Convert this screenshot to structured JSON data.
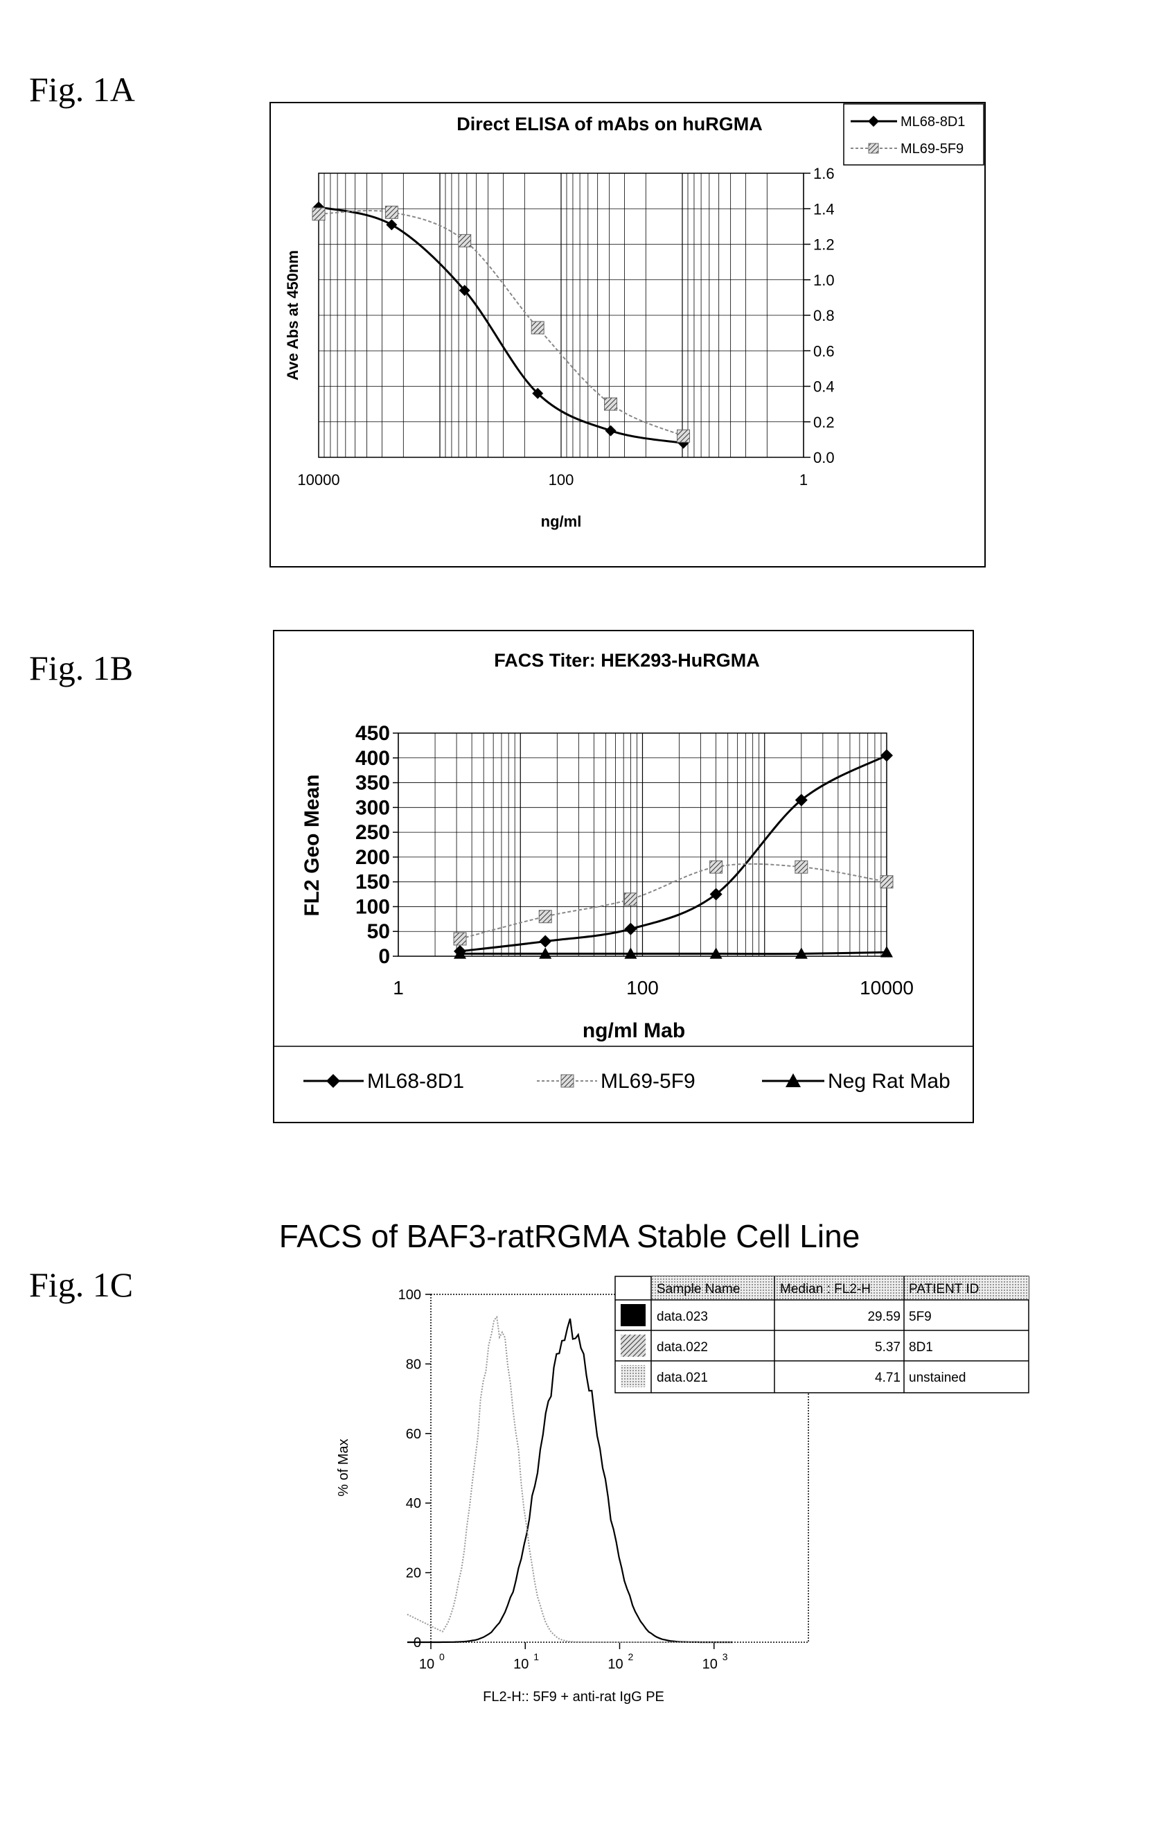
{
  "figure_labels": [
    "Fig. 1A",
    "Fig. 1B",
    "Fig. 1C"
  ],
  "chart_data": [
    {
      "type": "line",
      "title": "Direct ELISA of mAbs on huRGMA",
      "xlabel": "ng/ml",
      "ylabel": "Ave Abs at 450nm",
      "x_scale": "log",
      "x_reversed": true,
      "xlim": [
        10000,
        1
      ],
      "ylim": [
        0,
        1.6
      ],
      "y_axis_side": "right",
      "grid": true,
      "legend": "top-right",
      "x_ticks": [
        "10000",
        "100",
        "1"
      ],
      "y_ticks": [
        "0.0",
        "0.2",
        "0.4",
        "0.6",
        "0.8",
        "1.0",
        "1.2",
        "1.4",
        "1.6"
      ],
      "series": [
        {
          "name": "ML68-8D1",
          "x": [
            10000,
            2500,
            625,
            156,
            39,
            9.8
          ],
          "values": [
            1.41,
            1.31,
            0.94,
            0.36,
            0.15,
            0.08
          ],
          "color": "#000000",
          "marker": "diamond"
        },
        {
          "name": "ML69-5F9",
          "x": [
            10000,
            2500,
            625,
            156,
            39,
            9.8
          ],
          "values": [
            1.37,
            1.38,
            1.22,
            0.73,
            0.3,
            0.12
          ],
          "color": "#888888",
          "marker": "hatched-square"
        }
      ]
    },
    {
      "type": "line",
      "title": "FACS Titer: HEK293-HuRGMA",
      "xlabel": "ng/ml Mab",
      "ylabel": "FL2 Geo Mean",
      "x_scale": "log",
      "xlim": [
        1,
        10000
      ],
      "ylim": [
        0,
        450
      ],
      "grid": true,
      "legend": "bottom",
      "x_ticks": [
        "1",
        "100",
        "10000"
      ],
      "y_ticks": [
        "0",
        "50",
        "100",
        "150",
        "200",
        "250",
        "300",
        "350",
        "400",
        "450"
      ],
      "series": [
        {
          "name": "ML68-8D1",
          "x": [
            3.2,
            16,
            80,
            400,
            2000,
            10000
          ],
          "values": [
            10,
            30,
            55,
            125,
            315,
            405
          ],
          "color": "#000000",
          "marker": "diamond"
        },
        {
          "name": "ML69-5F9",
          "x": [
            3.2,
            16,
            80,
            400,
            2000,
            10000
          ],
          "values": [
            35,
            80,
            115,
            180,
            180,
            150
          ],
          "color": "#888888",
          "marker": "hatched-square"
        },
        {
          "name": "Neg Rat Mab",
          "x": [
            3.2,
            16,
            80,
            400,
            2000,
            10000
          ],
          "values": [
            5,
            5,
            5,
            5,
            5,
            8
          ],
          "color": "#000000",
          "marker": "triangle"
        }
      ]
    },
    {
      "type": "histogram",
      "title": "FACS of BAF3-ratRGMA Stable Cell Line",
      "xlabel": "FL2-H:: 5F9 + anti-rat IgG PE",
      "ylabel": "% of Max",
      "x_scale": "log",
      "xlim": [
        1,
        10000
      ],
      "ylim": [
        0,
        100
      ],
      "y_ticks": [
        "0",
        "20",
        "40",
        "60",
        "80",
        "100"
      ],
      "x_tick_bases": [
        "10",
        "10",
        "10",
        "10"
      ],
      "x_tick_exps": [
        "0",
        "1",
        "2",
        "3"
      ],
      "series": [
        {
          "name": "5F9",
          "peak_x": 30,
          "peak_pct": 90,
          "color": "#000000",
          "style": "solid"
        },
        {
          "name": "unstained",
          "peak_x": 5,
          "peak_pct": 92,
          "color": "#999999",
          "style": "dotted"
        }
      ],
      "table": {
        "headers": [
          "Sample Name",
          "Median : FL2-H",
          "PATIENT ID"
        ],
        "rows": [
          {
            "swatch": "solid",
            "sample": "data.023",
            "median": "29.59",
            "id": "5F9"
          },
          {
            "swatch": "hatched",
            "sample": "data.022",
            "median": "5.37",
            "id": "8D1"
          },
          {
            "swatch": "dotted",
            "sample": "data.021",
            "median": "4.71",
            "id": "unstained"
          }
        ]
      }
    }
  ]
}
